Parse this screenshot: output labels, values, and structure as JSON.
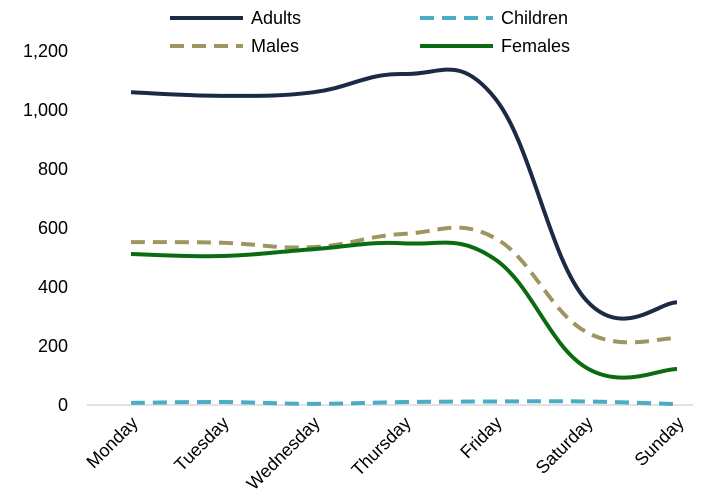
{
  "chart_data": {
    "type": "line",
    "categories": [
      "Monday",
      "Tuesday",
      "Wednesday",
      "Thursday",
      "Friday",
      "Saturday",
      "Sunday"
    ],
    "series": [
      {
        "name": "Adults",
        "values": [
          1060,
          1048,
          1060,
          1122,
          1040,
          356,
          348
        ],
        "color": "#1b2a45",
        "dash": "solid"
      },
      {
        "name": "Children",
        "values": [
          7,
          10,
          4,
          10,
          12,
          12,
          3
        ],
        "color": "#4bacc6",
        "dash": "dashed"
      },
      {
        "name": "Males",
        "values": [
          552,
          550,
          535,
          580,
          566,
          248,
          226
        ],
        "color": "#9f9560",
        "dash": "dashed"
      },
      {
        "name": "Females",
        "values": [
          512,
          505,
          528,
          548,
          494,
          127,
          122
        ],
        "color": "#0b6b12",
        "dash": "solid"
      }
    ],
    "yticks": [
      "0",
      "200",
      "400",
      "600",
      "800",
      "1,000",
      "1,200"
    ],
    "ylim": [
      0,
      1200
    ],
    "grid": false,
    "legend_position": "top",
    "xlabel": "",
    "ylabel": "",
    "title": ""
  }
}
